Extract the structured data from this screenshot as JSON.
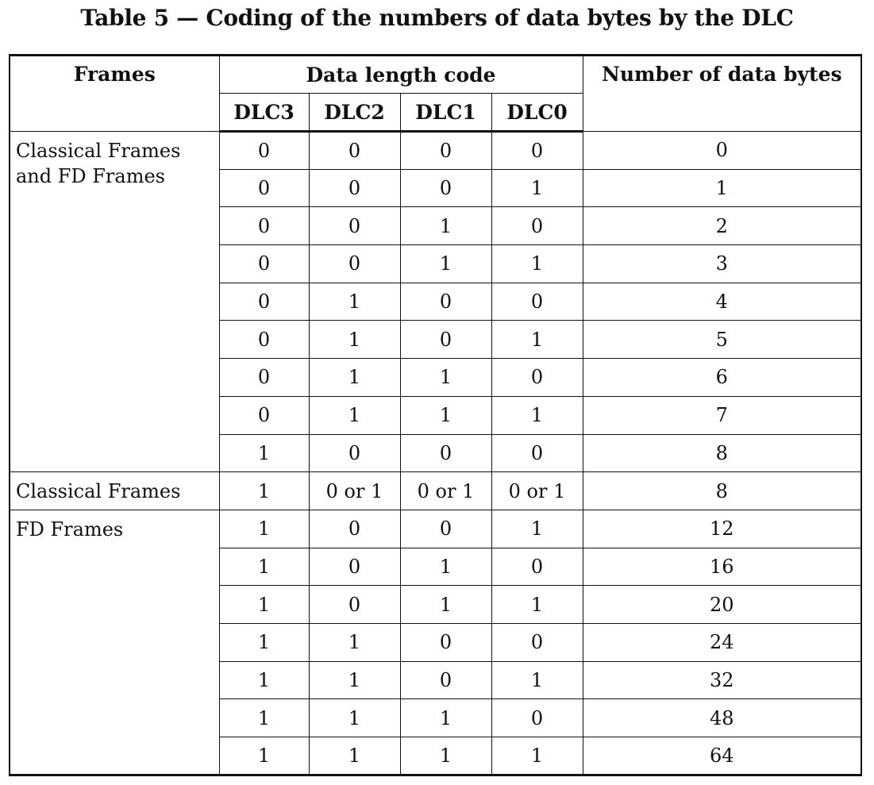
{
  "title": "Table 5 — Coding of the numbers of data bytes by the DLC",
  "table": {
    "headers": {
      "frames": "Frames",
      "data_length_code": "Data length code",
      "number_of_data_bytes": "Number of data bytes",
      "dlc3": "DLC3",
      "dlc2": "DLC2",
      "dlc1": "DLC1",
      "dlc0": "DLC0"
    },
    "groups": [
      {
        "frames_label": "Classical Frames\nand FD Frames",
        "rows": [
          [
            "0",
            "0",
            "0",
            "0",
            "0"
          ],
          [
            "0",
            "0",
            "0",
            "1",
            "1"
          ],
          [
            "0",
            "0",
            "1",
            "0",
            "2"
          ],
          [
            "0",
            "0",
            "1",
            "1",
            "3"
          ],
          [
            "0",
            "1",
            "0",
            "0",
            "4"
          ],
          [
            "0",
            "1",
            "0",
            "1",
            "5"
          ],
          [
            "0",
            "1",
            "1",
            "0",
            "6"
          ],
          [
            "0",
            "1",
            "1",
            "1",
            "7"
          ],
          [
            "1",
            "0",
            "0",
            "0",
            "8"
          ]
        ]
      },
      {
        "frames_label": "Classical Frames",
        "rows": [
          [
            "1",
            "0 or 1",
            "0 or 1",
            "0 or 1",
            "8"
          ]
        ]
      },
      {
        "frames_label": "FD Frames",
        "rows": [
          [
            "1",
            "0",
            "0",
            "1",
            "12"
          ],
          [
            "1",
            "0",
            "1",
            "0",
            "16"
          ],
          [
            "1",
            "0",
            "1",
            "1",
            "20"
          ],
          [
            "1",
            "1",
            "0",
            "0",
            "24"
          ],
          [
            "1",
            "1",
            "0",
            "1",
            "32"
          ],
          [
            "1",
            "1",
            "1",
            "0",
            "48"
          ],
          [
            "1",
            "1",
            "1",
            "1",
            "64"
          ]
        ]
      }
    ]
  }
}
